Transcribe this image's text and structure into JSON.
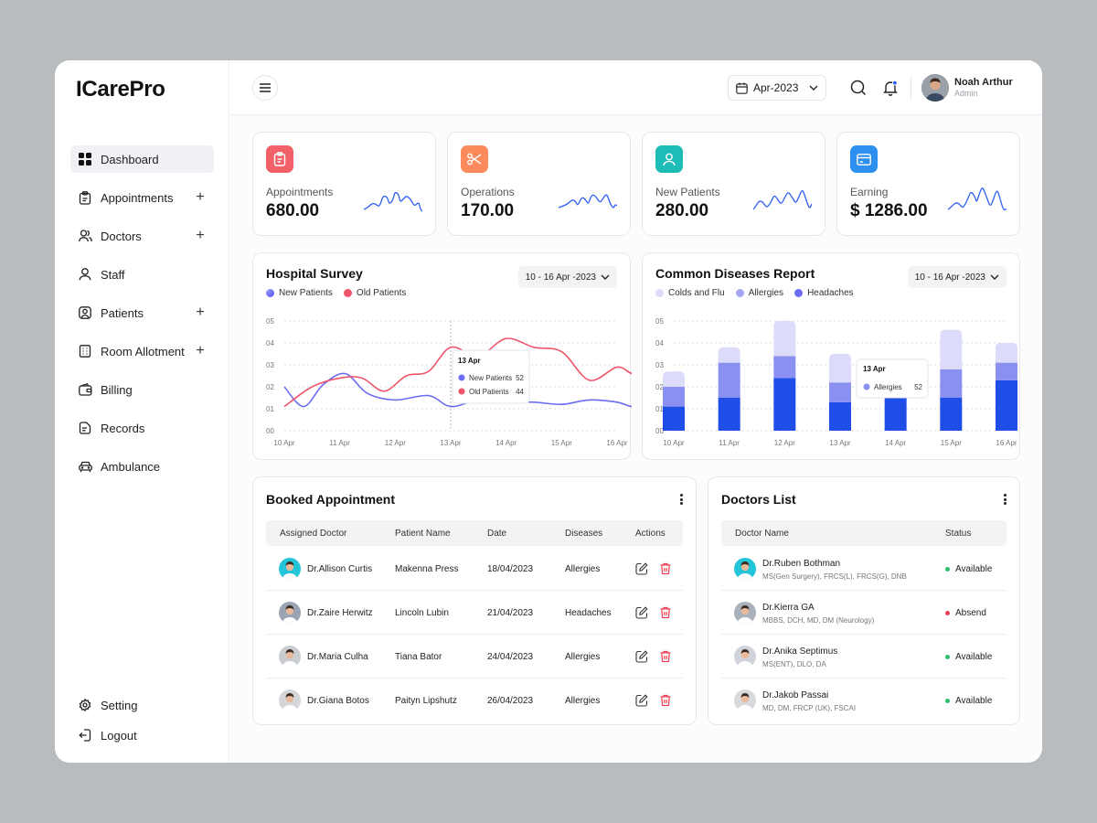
{
  "app": {
    "logo": "ICarePro"
  },
  "sidebar": {
    "items": [
      {
        "label": "Dashboard",
        "icon": "grid-icon",
        "active": true,
        "expandable": false
      },
      {
        "label": "Appointments",
        "icon": "clipboard-icon",
        "expandable": true
      },
      {
        "label": "Doctors",
        "icon": "users-icon",
        "expandable": true
      },
      {
        "label": "Staff",
        "icon": "user-icon",
        "expandable": false
      },
      {
        "label": "Patients",
        "icon": "patient-icon",
        "expandable": true
      },
      {
        "label": "Room Allotment",
        "icon": "building-icon",
        "expandable": true
      },
      {
        "label": "Billing",
        "icon": "wallet-icon",
        "expandable": false
      },
      {
        "label": "Records",
        "icon": "document-icon",
        "expandable": false
      },
      {
        "label": "Ambulance",
        "icon": "car-icon",
        "expandable": false
      }
    ],
    "bottom": [
      {
        "label": "Setting",
        "icon": "gear-icon"
      },
      {
        "label": "Logout",
        "icon": "logout-icon"
      }
    ]
  },
  "header": {
    "date": "Apr-2023",
    "user": {
      "name": "Noah Arthur",
      "role": "Admin"
    }
  },
  "stats": [
    {
      "label": "Appointments",
      "value": "680.00",
      "icon": "clipboard-icon",
      "color": "#f2606a"
    },
    {
      "label": "Operations",
      "value": "170.00",
      "icon": "scissors-icon",
      "color": "#fb8a5c"
    },
    {
      "label": "New Patients",
      "value": "280.00",
      "icon": "user-icon",
      "color": "#1dbcb6"
    },
    {
      "label": "Earning",
      "value": "$ 1286.00",
      "icon": "card-icon",
      "color": "#2d8fef"
    }
  ],
  "survey": {
    "title": "Hospital Survey",
    "range": "10 - 16 Apr -2023",
    "legend": [
      "New Patients",
      "Old Patients"
    ],
    "tooltip": {
      "date": "13 Apr",
      "rows": [
        {
          "label": "New Patients",
          "value": "52"
        },
        {
          "label": "Old Patients",
          "value": "44"
        }
      ]
    }
  },
  "diseases": {
    "title": "Common Diseases Report",
    "range": "10 - 16 Apr -2023",
    "legend": [
      "Colds and Flu",
      "Allergies",
      "Headaches"
    ],
    "tooltip": {
      "date": "13 Apr",
      "label": "Allergies",
      "value": "52"
    }
  },
  "chart_data": [
    {
      "type": "line",
      "x": [
        "10 Apr",
        "11 Apr",
        "12 Apr",
        "13 Apr",
        "14 Apr",
        "15 Apr",
        "16 Apr"
      ],
      "yticks": [
        "00",
        "01",
        "02",
        "03",
        "04",
        "05"
      ],
      "ylim": [
        0,
        5
      ],
      "series": [
        {
          "name": "New Patients",
          "color": "#6b6cf2",
          "values": [
            2.0,
            2.6,
            1.7,
            1.1,
            1.4,
            1.3,
            1.4
          ]
        },
        {
          "name": "Old Patients",
          "color": "#f0546a",
          "values": [
            1.1,
            2.4,
            2.5,
            3.8,
            4.2,
            2.3,
            3.1
          ]
        }
      ],
      "smooth_points": {
        "New Patients": [
          [
            0,
            2.0
          ],
          [
            0.35,
            1.1
          ],
          [
            0.7,
            2.1
          ],
          [
            1.1,
            2.6
          ],
          [
            1.5,
            1.7
          ],
          [
            2.0,
            1.4
          ],
          [
            2.6,
            1.6
          ],
          [
            3.0,
            1.1
          ],
          [
            3.5,
            1.4
          ],
          [
            4.0,
            1.3
          ],
          [
            4.5,
            1.3
          ],
          [
            5.0,
            1.2
          ],
          [
            5.5,
            1.4
          ],
          [
            6.0,
            1.3
          ],
          [
            6.3,
            1.1
          ],
          [
            6.6,
            1.45
          ]
        ],
        "Old Patients": [
          [
            0,
            1.1
          ],
          [
            0.5,
            2.0
          ],
          [
            1.0,
            2.4
          ],
          [
            1.4,
            2.4
          ],
          [
            1.8,
            1.8
          ],
          [
            2.2,
            2.5
          ],
          [
            2.6,
            2.7
          ],
          [
            3.0,
            3.8
          ],
          [
            3.5,
            3.4
          ],
          [
            4.0,
            4.2
          ],
          [
            4.5,
            3.8
          ],
          [
            5.0,
            3.6
          ],
          [
            5.5,
            2.3
          ],
          [
            6.0,
            2.9
          ],
          [
            6.3,
            2.6
          ],
          [
            6.6,
            3.1
          ]
        ]
      }
    },
    {
      "type": "bar",
      "stacked": true,
      "categories": [
        "10 Apr",
        "11 Apr",
        "12 Apr",
        "13 Apr",
        "14 Apr",
        "15 Apr",
        "16 Apr"
      ],
      "yticks": [
        "00",
        "01",
        "02",
        "03",
        "04",
        "05"
      ],
      "ylim": [
        0,
        5
      ],
      "series": [
        {
          "name": "Headaches",
          "color": "#1e4de8",
          "values": [
            1.1,
            1.5,
            2.4,
            1.3,
            1.6,
            1.5,
            2.3
          ]
        },
        {
          "name": "Allergies",
          "color": "#8a90ef",
          "values": [
            0.9,
            1.6,
            1.0,
            0.9,
            0.7,
            1.3,
            0.8
          ]
        },
        {
          "name": "Colds and Flu",
          "color": "#dcdcfa",
          "values": [
            0.7,
            0.7,
            1.6,
            1.3,
            0.9,
            1.8,
            0.9
          ]
        }
      ]
    }
  ],
  "appointments": {
    "title": "Booked Appointment",
    "columns": [
      "Assigned Doctor",
      "Patient Name",
      "Date",
      "Diseases",
      "Actions"
    ],
    "rows": [
      {
        "doctor": "Dr.Allison Curtis",
        "patient": "Makenna Press",
        "date": "18/04/2023",
        "disease": "Allergies",
        "avatar_color": "#24c5d8"
      },
      {
        "doctor": "Dr.Zaire Herwitz",
        "patient": "Lincoln Lubin",
        "date": "21/04/2023",
        "disease": "Headaches",
        "avatar_color": "#9aa4b2"
      },
      {
        "doctor": "Dr.Maria Culha",
        "patient": "Tiana Bator",
        "date": "24/04/2023",
        "disease": "Allergies",
        "avatar_color": "#c9cdd2"
      },
      {
        "doctor": "Dr.Giana Botos",
        "patient": "Paityn Lipshutz",
        "date": "26/04/2023",
        "disease": "Allergies",
        "avatar_color": "#d4d6d9"
      }
    ]
  },
  "doctors": {
    "title": "Doctors List",
    "columns": [
      "Doctor Name",
      "Status"
    ],
    "rows": [
      {
        "name": "Dr.Ruben Bothman",
        "qual": "MS(Gen Surgery), FRCS(L), FRCS(G), DNB",
        "status": "Available",
        "status_color": "#2dbf6c",
        "avatar_color": "#24c5d8"
      },
      {
        "name": "Dr.Kierra GA",
        "qual": "MBBS, DCH, MD, DM (Neurology)",
        "status": "Absend",
        "status_color": "#ef3b4f",
        "avatar_color": "#aab1bb"
      },
      {
        "name": "Dr.Anika Septimus",
        "qual": "MS(ENT), DLO, DA",
        "status": "Available",
        "status_color": "#2dbf6c",
        "avatar_color": "#d0d4da"
      },
      {
        "name": "Dr.Jakob Passai",
        "qual": "MD, DM, FRCP (UK), FSCAI",
        "status": "Available",
        "status_color": "#2dbf6c",
        "avatar_color": "#d8d9dc"
      }
    ]
  }
}
